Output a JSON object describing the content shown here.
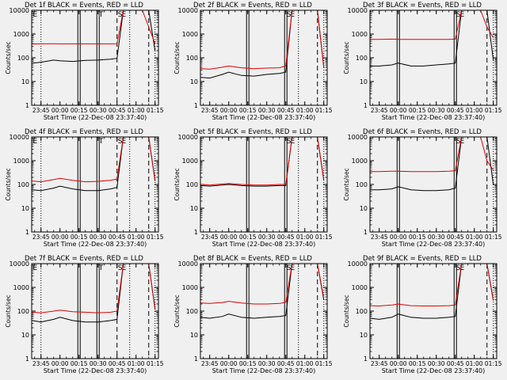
{
  "figure": {
    "title_template": "Det {det} BLACK = Events, RED = LLD",
    "xlabel": "Start Time (22-Dec-08 23:37:40)",
    "ylabel": "Counts/sec",
    "colors": {
      "events": "#000000",
      "lld": "#e00000",
      "background": "#f0f0f0"
    }
  },
  "chart_data": [
    {
      "type": "line",
      "title": "Det 1f BLACK = Events, RED = LLD",
      "xlabel": "Start Time (22-Dec-08 23:37:40)",
      "ylabel": "Counts/sec",
      "yscale": "log",
      "ylim": [
        1,
        10000
      ],
      "ytick_labels": [
        "1",
        "10",
        "100",
        "1000",
        "10000"
      ],
      "xlim": [
        "23:37:40",
        "01:17:40"
      ],
      "xtick_labels": [
        "23:45",
        "00:00",
        "00:15",
        "00:30",
        "00:45",
        "01:00",
        "01:15"
      ],
      "x": [
        "23:38",
        "23:45",
        "23:55",
        "00:00",
        "00:10",
        "00:20",
        "00:30",
        "00:40",
        "00:45",
        "00:50",
        "00:55",
        "01:00",
        "01:05",
        "01:10",
        "01:15"
      ],
      "series": [
        {
          "name": "Events",
          "color": "#000000",
          "values": [
            60,
            65,
            80,
            75,
            70,
            78,
            80,
            88,
            95,
            10000,
            10000,
            10000,
            10000,
            10000,
            200
          ]
        },
        {
          "name": "LLD",
          "color": "#e00000",
          "values": [
            380,
            385,
            390,
            385,
            385,
            385,
            385,
            385,
            390,
            10000,
            10000,
            10000,
            10000,
            2000,
            400
          ]
        }
      ],
      "markers": {
        "dotted": [
          "23:45",
          "00:55",
          "01:15"
        ],
        "dashed": [
          "00:45",
          "01:10"
        ],
        "solid_double": [
          "00:15",
          "00:30"
        ],
        "labels": [
          {
            "text": "E",
            "at": "23:38"
          },
          {
            "text": "T",
            "at": "00:30"
          },
          {
            "text": "S",
            "at": "00:45"
          },
          {
            "text": "E",
            "at": "00:48"
          }
        ]
      }
    },
    {
      "type": "line",
      "title": "Det 2f BLACK = Events, RED = LLD",
      "xlabel": "Start Time (22-Dec-08 23:37:40)",
      "ylabel": "Counts/sec",
      "yscale": "log",
      "ylim": [
        1,
        10000
      ],
      "ytick_labels": [
        "1",
        "10",
        "100",
        "1000",
        "10000"
      ],
      "xlim": [
        "23:37:40",
        "01:17:40"
      ],
      "xtick_labels": [
        "23:45",
        "00:00",
        "00:15",
        "00:30",
        "00:45",
        "01:00",
        "01:15"
      ],
      "x": [
        "23:38",
        "23:45",
        "23:55",
        "00:00",
        "00:10",
        "00:20",
        "00:30",
        "00:40",
        "00:45",
        "00:50",
        "00:55",
        "01:00",
        "01:05",
        "01:10",
        "01:15"
      ],
      "series": [
        {
          "name": "Events",
          "color": "#000000",
          "values": [
            15,
            14,
            20,
            25,
            18,
            17,
            20,
            22,
            25,
            10000,
            10000,
            10000,
            10000,
            10000,
            40
          ]
        },
        {
          "name": "LLD",
          "color": "#e00000",
          "values": [
            35,
            33,
            40,
            45,
            38,
            35,
            37,
            38,
            45,
            10000,
            10000,
            10000,
            10000,
            10000,
            40
          ]
        }
      ],
      "markers": {
        "dotted": [
          "00:55",
          "01:15"
        ],
        "dashed": [
          "01:10"
        ],
        "solid_double": [
          "00:15",
          "00:45"
        ],
        "labels": [
          {
            "text": "S",
            "at": "00:45"
          },
          {
            "text": "E",
            "at": "00:48"
          }
        ]
      }
    },
    {
      "type": "line",
      "title": "Det 3f BLACK = Events, RED = LLD",
      "xlabel": "Start Time (22-Dec-08 23:37:40)",
      "ylabel": "Counts/sec",
      "yscale": "log",
      "ylim": [
        1,
        10000
      ],
      "ytick_labels": [
        "1",
        "10",
        "100",
        "1000",
        "10000"
      ],
      "xlim": [
        "23:37:40",
        "01:17:40"
      ],
      "xtick_labels": [
        "23:45",
        "00:00",
        "00:15",
        "00:30",
        "00:45",
        "01:00",
        "01:15"
      ],
      "x": [
        "23:38",
        "23:45",
        "23:55",
        "00:00",
        "00:10",
        "00:20",
        "00:30",
        "00:40",
        "00:45",
        "00:50",
        "00:55",
        "01:00",
        "01:05",
        "01:10",
        "01:15"
      ],
      "series": [
        {
          "name": "Events",
          "color": "#000000",
          "values": [
            45,
            45,
            50,
            60,
            45,
            45,
            50,
            55,
            60,
            10000,
            10000,
            10000,
            10000,
            10000,
            80
          ]
        },
        {
          "name": "LLD",
          "color": "#e00000",
          "values": [
            600,
            600,
            610,
            600,
            600,
            600,
            600,
            600,
            610,
            10000,
            10000,
            10000,
            10000,
            2000,
            700
          ]
        }
      ],
      "markers": {
        "dotted": [
          "01:15"
        ],
        "dashed": [
          "01:10"
        ],
        "solid_double": [
          "00:00",
          "00:45"
        ],
        "labels": [
          {
            "text": "S",
            "at": "00:45"
          },
          {
            "text": "E",
            "at": "00:48"
          }
        ]
      }
    },
    {
      "type": "line",
      "title": "Det 4f BLACK = Events, RED = LLD",
      "xlabel": "Start Time (22-Dec-08 23:37:40)",
      "ylabel": "Counts/sec",
      "yscale": "log",
      "ylim": [
        1,
        10000
      ],
      "ytick_labels": [
        "1",
        "10",
        "100",
        "1000",
        "10000"
      ],
      "xlim": [
        "23:37:40",
        "01:17:40"
      ],
      "xtick_labels": [
        "23:45",
        "00:00",
        "00:15",
        "00:30",
        "00:45",
        "01:00",
        "01:15"
      ],
      "x": [
        "23:38",
        "23:45",
        "23:55",
        "00:00",
        "00:10",
        "00:20",
        "00:30",
        "00:40",
        "00:45",
        "00:50",
        "00:55",
        "01:00",
        "01:05",
        "01:10",
        "01:15"
      ],
      "series": [
        {
          "name": "Events",
          "color": "#000000",
          "values": [
            60,
            55,
            70,
            85,
            65,
            55,
            55,
            65,
            75,
            10000,
            10000,
            10000,
            10000,
            10000,
            140
          ]
        },
        {
          "name": "LLD",
          "color": "#e00000",
          "values": [
            140,
            130,
            160,
            180,
            150,
            130,
            135,
            150,
            170,
            10000,
            10000,
            10000,
            10000,
            10000,
            160
          ]
        }
      ],
      "markers": {
        "dotted": [
          "23:45",
          "00:55",
          "01:15"
        ],
        "dashed": [
          "00:45",
          "01:10"
        ],
        "solid_double": [
          "00:15",
          "00:30"
        ],
        "labels": [
          {
            "text": "E",
            "at": "23:38"
          },
          {
            "text": "T",
            "at": "00:30"
          },
          {
            "text": "S",
            "at": "00:45"
          },
          {
            "text": "E",
            "at": "00:48"
          }
        ]
      }
    },
    {
      "type": "line",
      "title": "Det 5f BLACK = Events, RED = LLD",
      "xlabel": "Start Time (22-Dec-08 23:37:40)",
      "ylabel": "Counts/sec",
      "yscale": "log",
      "ylim": [
        1,
        10000
      ],
      "ytick_labels": [
        "1",
        "10",
        "100",
        "1000",
        "10000"
      ],
      "xlim": [
        "23:37:40",
        "01:17:40"
      ],
      "xtick_labels": [
        "23:45",
        "00:00",
        "00:15",
        "00:30",
        "00:45",
        "01:00",
        "01:15"
      ],
      "x": [
        "23:38",
        "23:45",
        "23:55",
        "00:00",
        "00:10",
        "00:20",
        "00:30",
        "00:40",
        "00:45",
        "00:50",
        "00:55",
        "01:00",
        "01:05",
        "01:10",
        "01:15"
      ],
      "series": [
        {
          "name": "Events",
          "color": "#000000",
          "values": [
            90,
            85,
            95,
            100,
            90,
            85,
            85,
            90,
            90,
            10000,
            10000,
            10000,
            10000,
            10000,
            150
          ]
        },
        {
          "name": "LLD",
          "color": "#e00000",
          "values": [
            100,
            95,
            105,
            110,
            100,
            95,
            95,
            100,
            100,
            10000,
            10000,
            10000,
            10000,
            10000,
            160
          ]
        }
      ],
      "markers": {
        "dotted": [
          "00:55",
          "01:15"
        ],
        "dashed": [
          "01:10"
        ],
        "solid_double": [
          "00:15",
          "00:45"
        ],
        "labels": [
          {
            "text": "S",
            "at": "00:45"
          },
          {
            "text": "E",
            "at": "00:48"
          }
        ]
      }
    },
    {
      "type": "line",
      "title": "Det 6f BLACK = Events, RED = LLD",
      "xlabel": "Start Time (22-Dec-08 23:37:40)",
      "ylabel": "Counts/sec",
      "yscale": "log",
      "ylim": [
        1,
        10000
      ],
      "ytick_labels": [
        "1",
        "10",
        "100",
        "1000",
        "10000"
      ],
      "xlim": [
        "23:37:40",
        "01:17:40"
      ],
      "xtick_labels": [
        "23:45",
        "00:00",
        "00:15",
        "00:30",
        "00:45",
        "01:00",
        "01:15"
      ],
      "x": [
        "23:38",
        "23:45",
        "23:55",
        "00:00",
        "00:10",
        "00:20",
        "00:30",
        "00:40",
        "00:45",
        "00:50",
        "00:55",
        "01:00",
        "01:05",
        "01:10",
        "01:15"
      ],
      "series": [
        {
          "name": "Events",
          "color": "#000000",
          "values": [
            60,
            60,
            65,
            80,
            60,
            55,
            55,
            60,
            70,
            10000,
            10000,
            10000,
            10000,
            10000,
            100
          ]
        },
        {
          "name": "LLD",
          "color": "#e00000",
          "values": [
            350,
            350,
            360,
            360,
            350,
            350,
            350,
            360,
            380,
            10000,
            10000,
            10000,
            10000,
            1000,
            400
          ]
        }
      ],
      "markers": {
        "dotted": [
          "01:15"
        ],
        "dashed": [
          "01:10"
        ],
        "solid_double": [
          "00:00",
          "00:45"
        ],
        "labels": [
          {
            "text": "S",
            "at": "00:45"
          },
          {
            "text": "E",
            "at": "00:48"
          }
        ]
      }
    },
    {
      "type": "line",
      "title": "Det 7f BLACK = Events, RED = LLD",
      "xlabel": "Start Time (22-Dec-08 23:37:40)",
      "ylabel": "Counts/sec",
      "yscale": "log",
      "ylim": [
        1,
        10000
      ],
      "ytick_labels": [
        "1",
        "10",
        "100",
        "1000",
        "10000"
      ],
      "xlim": [
        "23:37:40",
        "01:17:40"
      ],
      "xtick_labels": [
        "23:45",
        "00:00",
        "00:15",
        "00:30",
        "00:45",
        "01:00",
        "01:15"
      ],
      "x": [
        "23:38",
        "23:45",
        "23:55",
        "00:00",
        "00:10",
        "00:20",
        "00:30",
        "00:40",
        "00:45",
        "00:50",
        "00:55",
        "01:00",
        "01:05",
        "01:10",
        "01:15"
      ],
      "series": [
        {
          "name": "Events",
          "color": "#000000",
          "values": [
            40,
            35,
            45,
            55,
            40,
            35,
            35,
            40,
            45,
            10000,
            10000,
            10000,
            10000,
            10000,
            120
          ]
        },
        {
          "name": "LLD",
          "color": "#e00000",
          "values": [
            90,
            85,
            100,
            110,
            95,
            90,
            85,
            90,
            100,
            10000,
            10000,
            10000,
            10000,
            10000,
            130
          ]
        }
      ],
      "markers": {
        "dotted": [
          "23:45",
          "00:55",
          "01:15"
        ],
        "dashed": [
          "00:45",
          "01:10"
        ],
        "solid_double": [
          "00:15",
          "00:30"
        ],
        "labels": [
          {
            "text": "E",
            "at": "23:38"
          },
          {
            "text": "T",
            "at": "00:30"
          },
          {
            "text": "S",
            "at": "00:45"
          },
          {
            "text": "E",
            "at": "00:48"
          }
        ]
      }
    },
    {
      "type": "line",
      "title": "Det 8f BLACK = Events, RED = LLD",
      "xlabel": "Start Time (22-Dec-08 23:37:40)",
      "ylabel": "Counts/sec",
      "yscale": "log",
      "ylim": [
        1,
        10000
      ],
      "ytick_labels": [
        "1",
        "10",
        "100",
        "1000",
        "10000"
      ],
      "xlim": [
        "23:37:40",
        "01:17:40"
      ],
      "xtick_labels": [
        "23:45",
        "00:00",
        "00:15",
        "00:30",
        "00:45",
        "01:00",
        "01:15"
      ],
      "x": [
        "23:38",
        "23:45",
        "23:55",
        "00:00",
        "00:10",
        "00:20",
        "00:30",
        "00:40",
        "00:45",
        "00:50",
        "00:55",
        "01:00",
        "01:05",
        "01:10",
        "01:15"
      ],
      "series": [
        {
          "name": "Events",
          "color": "#000000",
          "values": [
            55,
            50,
            60,
            75,
            55,
            50,
            55,
            60,
            65,
            10000,
            10000,
            10000,
            10000,
            10000,
            300
          ]
        },
        {
          "name": "LLD",
          "color": "#e00000",
          "values": [
            220,
            210,
            230,
            260,
            220,
            200,
            200,
            210,
            230,
            10000,
            10000,
            10000,
            10000,
            10000,
            350
          ]
        }
      ],
      "markers": {
        "dotted": [
          "00:55",
          "01:15"
        ],
        "dashed": [
          "01:10"
        ],
        "solid_double": [
          "00:15",
          "00:45"
        ],
        "labels": [
          {
            "text": "S",
            "at": "00:45"
          },
          {
            "text": "E",
            "at": "00:48"
          }
        ]
      }
    },
    {
      "type": "line",
      "title": "Det 9f BLACK = Events, RED = LLD",
      "xlabel": "Start Time (22-Dec-08 23:37:40)",
      "ylabel": "Counts/sec",
      "yscale": "log",
      "ylim": [
        1,
        10000
      ],
      "ytick_labels": [
        "1",
        "10",
        "100",
        "1000",
        "10000"
      ],
      "xlim": [
        "23:37:40",
        "01:17:40"
      ],
      "xtick_labels": [
        "23:45",
        "00:00",
        "00:15",
        "00:30",
        "00:45",
        "01:00",
        "01:15"
      ],
      "x": [
        "23:38",
        "23:45",
        "23:55",
        "00:00",
        "00:10",
        "00:20",
        "00:30",
        "00:40",
        "00:45",
        "00:50",
        "00:55",
        "01:00",
        "01:05",
        "01:10",
        "01:15"
      ],
      "series": [
        {
          "name": "Events",
          "color": "#000000",
          "values": [
            50,
            45,
            55,
            75,
            55,
            50,
            50,
            55,
            60,
            10000,
            10000,
            10000,
            10000,
            10000,
            280
          ]
        },
        {
          "name": "LLD",
          "color": "#e00000",
          "values": [
            170,
            165,
            180,
            200,
            170,
            165,
            165,
            170,
            180,
            10000,
            10000,
            10000,
            10000,
            10000,
            300
          ]
        }
      ],
      "markers": {
        "dotted": [
          "01:15"
        ],
        "dashed": [
          "01:10"
        ],
        "solid_double": [
          "00:00",
          "00:45"
        ],
        "labels": [
          {
            "text": "S",
            "at": "00:45"
          },
          {
            "text": "E",
            "at": "00:48"
          }
        ]
      }
    }
  ]
}
